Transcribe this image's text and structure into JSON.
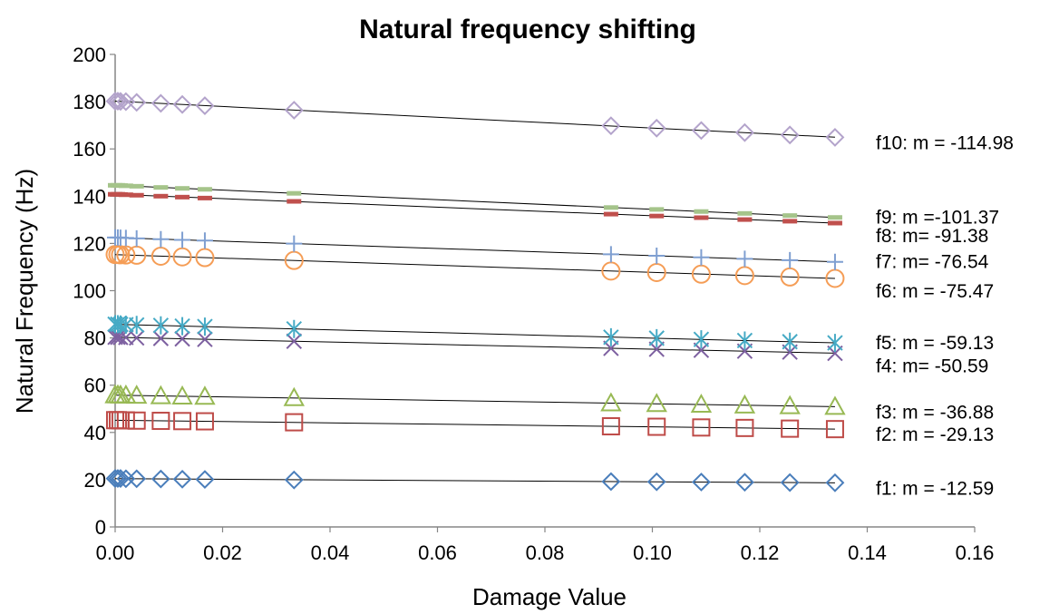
{
  "chart_data": {
    "type": "scatter",
    "title": "Natural frequency shifting",
    "xlabel": "Damage Value",
    "ylabel": "Natural Frequency (Hz)",
    "xlim": [
      0,
      0.16
    ],
    "ylim": [
      0,
      200
    ],
    "x_ticks": [
      "0.00",
      "0.02",
      "0.04",
      "0.06",
      "0.08",
      "0.10",
      "0.12",
      "0.14",
      "0.16"
    ],
    "y_ticks": [
      "0",
      "20",
      "40",
      "60",
      "80",
      "100",
      "120",
      "140",
      "160",
      "180",
      "200"
    ],
    "grid": false,
    "legend": "none",
    "x": [
      0.0,
      0.0005,
      0.001,
      0.002,
      0.004,
      0.0085,
      0.0125,
      0.0167,
      0.0333,
      0.0923,
      0.1008,
      0.1091,
      0.1172,
      0.1256,
      0.134
    ],
    "series": [
      {
        "marker": "diamond",
        "color": "#4a7ebb",
        "values": [
          20.5,
          20.5,
          20.5,
          20.4,
          20.4,
          20.3,
          20.2,
          20.1,
          19.9,
          19.2,
          19.1,
          19.0,
          18.9,
          18.8,
          18.7
        ],
        "annotation": "f1: m = -12.59"
      },
      {
        "marker": "square",
        "color": "#be4b48",
        "values": [
          45.2,
          45.2,
          45.1,
          45.1,
          45.0,
          44.9,
          44.8,
          44.7,
          44.3,
          42.6,
          42.4,
          42.1,
          41.9,
          41.6,
          41.4
        ],
        "annotation": "f2: m = -29.13"
      },
      {
        "marker": "triangle",
        "color": "#98b954",
        "values": [
          55.8,
          55.8,
          55.7,
          55.7,
          55.6,
          55.4,
          55.3,
          55.2,
          54.6,
          52.4,
          52.1,
          51.8,
          51.5,
          51.2,
          50.9
        ],
        "annotation": "f3: m = -36.88"
      },
      {
        "marker": "x",
        "color": "#7d60a0",
        "values": [
          80.3,
          80.3,
          80.2,
          80.2,
          80.0,
          79.8,
          79.6,
          79.4,
          78.6,
          75.6,
          75.2,
          74.8,
          74.4,
          74.0,
          73.5
        ],
        "annotation": "f4: m= -50.59"
      },
      {
        "marker": "asterisk",
        "color": "#46aac5",
        "values": [
          85.8,
          85.8,
          85.7,
          85.6,
          85.5,
          85.3,
          85.0,
          84.8,
          83.8,
          80.3,
          79.9,
          79.4,
          78.9,
          78.4,
          77.9
        ],
        "annotation": "f5: m = -59.13"
      },
      {
        "marker": "circle",
        "color": "#f59d56",
        "values": [
          115.3,
          115.3,
          115.2,
          115.1,
          115.0,
          114.6,
          114.3,
          114.0,
          112.8,
          108.3,
          107.7,
          107.0,
          106.4,
          105.8,
          105.2
        ],
        "annotation": "f6: m = -75.47"
      },
      {
        "marker": "plus",
        "color": "#7f9fd1",
        "values": [
          122.5,
          122.5,
          122.4,
          122.3,
          122.1,
          121.8,
          121.5,
          121.2,
          119.9,
          115.4,
          114.8,
          114.1,
          113.5,
          112.9,
          112.2
        ],
        "annotation": "f7: m= -76.54"
      },
      {
        "marker": "dash",
        "color": "#c0504d",
        "values": [
          140.8,
          140.8,
          140.7,
          140.6,
          140.4,
          140.0,
          139.6,
          139.2,
          137.8,
          132.4,
          131.6,
          130.9,
          130.1,
          129.4,
          128.6
        ],
        "annotation": "f8: m= -91.38"
      },
      {
        "marker": "dash",
        "color": "#a5c48a",
        "values": [
          144.6,
          144.6,
          144.5,
          144.4,
          144.2,
          143.7,
          143.3,
          142.9,
          141.2,
          135.2,
          134.4,
          133.5,
          132.7,
          131.8,
          131.0
        ],
        "annotation": "f9: m =-101.37"
      },
      {
        "marker": "diamond",
        "color": "#b3a3cb",
        "values": [
          180.2,
          180.2,
          180.1,
          180.0,
          179.7,
          179.3,
          178.8,
          178.3,
          176.4,
          169.8,
          168.8,
          167.8,
          166.9,
          165.9,
          164.9
        ],
        "annotation": "f10: m = -114.98"
      }
    ]
  }
}
